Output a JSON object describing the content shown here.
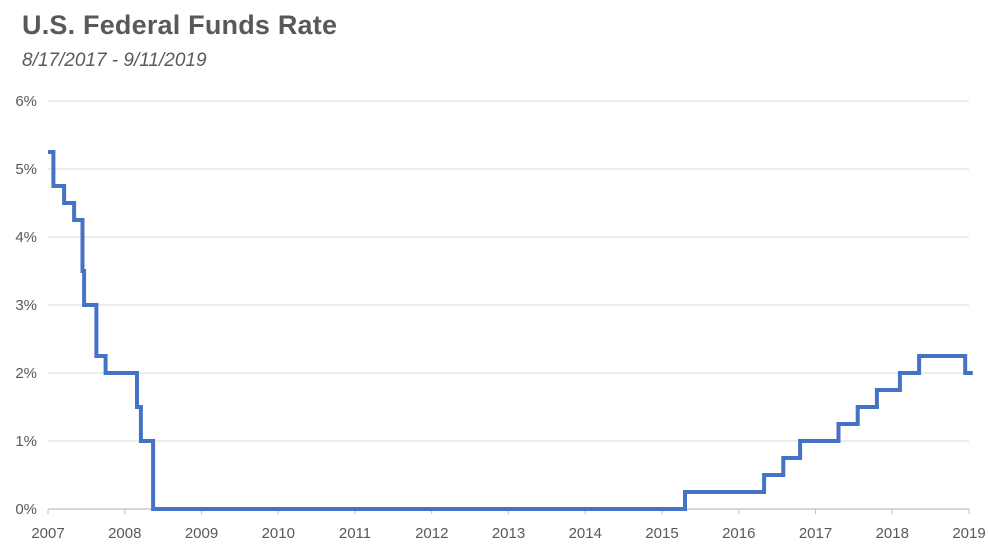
{
  "chart_data": {
    "type": "line",
    "title": "U.S. Federal Funds Rate",
    "subtitle": "8/17/2017 - 9/11/2019",
    "xlabel": "",
    "ylabel": "",
    "x_ticks": [
      "2007",
      "2008",
      "2009",
      "2010",
      "2011",
      "2012",
      "2013",
      "2014",
      "2015",
      "2016",
      "2017",
      "2018",
      "2019"
    ],
    "y_ticks": [
      "0%",
      "1%",
      "2%",
      "3%",
      "4%",
      "5%",
      "6%"
    ],
    "xlim": [
      2007,
      2019
    ],
    "ylim": [
      0,
      6
    ],
    "grid": "horizontal",
    "legend": "none",
    "line_color": "#4472c4",
    "series": [
      {
        "points": [
          [
            2007.0,
            5.25
          ],
          [
            2007.07,
            5.25
          ],
          [
            2007.07,
            4.75
          ],
          [
            2007.21,
            4.75
          ],
          [
            2007.21,
            4.5
          ],
          [
            2007.34,
            4.5
          ],
          [
            2007.34,
            4.25
          ],
          [
            2007.45,
            4.25
          ],
          [
            2007.45,
            3.5
          ],
          [
            2007.47,
            3.5
          ],
          [
            2007.47,
            3.0
          ],
          [
            2007.63,
            3.0
          ],
          [
            2007.63,
            2.25
          ],
          [
            2007.75,
            2.25
          ],
          [
            2007.75,
            2.0
          ],
          [
            2008.16,
            2.0
          ],
          [
            2008.16,
            1.5
          ],
          [
            2008.21,
            1.5
          ],
          [
            2008.21,
            1.0
          ],
          [
            2008.37,
            1.0
          ],
          [
            2008.37,
            0.0
          ],
          [
            2015.3,
            0.0
          ],
          [
            2015.3,
            0.25
          ],
          [
            2016.33,
            0.25
          ],
          [
            2016.33,
            0.5
          ],
          [
            2016.58,
            0.5
          ],
          [
            2016.58,
            0.75
          ],
          [
            2016.8,
            0.75
          ],
          [
            2016.8,
            1.0
          ],
          [
            2017.3,
            1.0
          ],
          [
            2017.3,
            1.25
          ],
          [
            2017.55,
            1.25
          ],
          [
            2017.55,
            1.5
          ],
          [
            2017.8,
            1.5
          ],
          [
            2017.8,
            1.75
          ],
          [
            2018.1,
            1.75
          ],
          [
            2018.1,
            2.0
          ],
          [
            2018.35,
            2.0
          ],
          [
            2018.35,
            2.25
          ],
          [
            2018.95,
            2.25
          ],
          [
            2018.95,
            2.0
          ],
          [
            2019.05,
            2.0
          ]
        ]
      }
    ]
  }
}
